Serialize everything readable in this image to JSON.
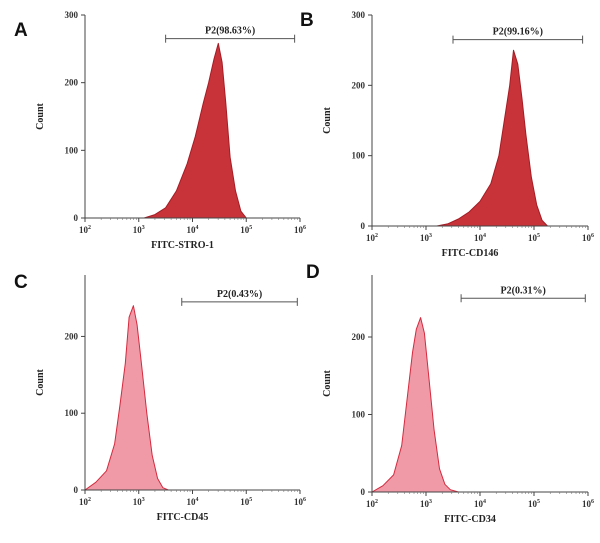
{
  "chart_data": [
    {
      "type": "area",
      "panel": "A",
      "xlabel": "FITC-STRO-1",
      "ylabel": "Count",
      "x_scale": "log",
      "x_ticks": [
        2,
        3,
        4,
        5,
        6
      ],
      "y_ticks": [
        0,
        100,
        200,
        300
      ],
      "ylim": [
        0,
        300
      ],
      "xlim": [
        2,
        6
      ],
      "gate": {
        "label": "P2(98.63%)",
        "from": 3.5,
        "to": 5.9,
        "y": 265
      },
      "colors": {
        "fill": "#c8333a",
        "stroke": "#a51c24"
      },
      "series": [
        {
          "x": [
            3.1,
            3.3,
            3.5,
            3.7,
            3.9,
            4.05,
            4.2,
            4.3,
            4.4,
            4.48,
            4.55,
            4.62,
            4.7,
            4.8,
            4.9,
            5.0
          ],
          "y": [
            0,
            5,
            15,
            40,
            80,
            120,
            170,
            200,
            235,
            258,
            230,
            170,
            90,
            40,
            10,
            0
          ]
        }
      ]
    },
    {
      "type": "area",
      "panel": "B",
      "xlabel": "FITC-CD146",
      "ylabel": "Count",
      "x_scale": "log",
      "x_ticks": [
        2,
        3,
        4,
        5,
        6
      ],
      "y_ticks": [
        0,
        100,
        200,
        300
      ],
      "ylim": [
        0,
        300
      ],
      "xlim": [
        2,
        6
      ],
      "gate": {
        "label": "P2(99.16%)",
        "from": 3.5,
        "to": 5.9,
        "y": 265
      },
      "colors": {
        "fill": "#c8333a",
        "stroke": "#a51c24"
      },
      "series": [
        {
          "x": [
            3.2,
            3.4,
            3.6,
            3.8,
            4.0,
            4.2,
            4.35,
            4.45,
            4.55,
            4.62,
            4.7,
            4.78,
            4.85,
            4.95,
            5.05,
            5.15,
            5.25
          ],
          "y": [
            0,
            3,
            10,
            20,
            35,
            60,
            100,
            150,
            200,
            250,
            230,
            180,
            130,
            70,
            30,
            8,
            0
          ]
        }
      ]
    },
    {
      "type": "area",
      "panel": "C",
      "xlabel": "FITC-CD45",
      "ylabel": "Count",
      "x_scale": "log",
      "x_ticks": [
        2,
        3,
        4,
        5,
        6
      ],
      "y_ticks": [
        0,
        100,
        200
      ],
      "ylim": [
        0,
        280
      ],
      "xlim": [
        2,
        6
      ],
      "gate": {
        "label": "P2(0.43%)",
        "from": 3.8,
        "to": 5.95,
        "y": 245
      },
      "colors": {
        "fill": "#f09aa8",
        "stroke": "#d42a3e"
      },
      "series": [
        {
          "x": [
            2.0,
            2.2,
            2.4,
            2.55,
            2.65,
            2.75,
            2.82,
            2.9,
            2.97,
            3.05,
            3.15,
            3.25,
            3.35,
            3.45,
            3.55
          ],
          "y": [
            0,
            10,
            25,
            60,
            110,
            165,
            225,
            240,
            215,
            165,
            100,
            45,
            15,
            3,
            0
          ]
        }
      ]
    },
    {
      "type": "area",
      "panel": "D",
      "xlabel": "FITC-CD34",
      "ylabel": "Count",
      "x_scale": "log",
      "x_ticks": [
        2,
        3,
        4,
        5,
        6
      ],
      "y_ticks": [
        0,
        100,
        200
      ],
      "ylim": [
        0,
        280
      ],
      "xlim": [
        2,
        6
      ],
      "gate": {
        "label": "P2(0.31%)",
        "from": 3.65,
        "to": 5.95,
        "y": 250
      },
      "colors": {
        "fill": "#f09aa8",
        "stroke": "#d42a3e"
      },
      "series": [
        {
          "x": [
            2.0,
            2.2,
            2.4,
            2.55,
            2.65,
            2.75,
            2.82,
            2.9,
            2.97,
            3.05,
            3.15,
            3.25,
            3.35,
            3.45,
            3.6
          ],
          "y": [
            0,
            8,
            22,
            60,
            120,
            180,
            210,
            225,
            205,
            150,
            80,
            30,
            10,
            3,
            0
          ]
        }
      ]
    }
  ],
  "tick_base": "10"
}
